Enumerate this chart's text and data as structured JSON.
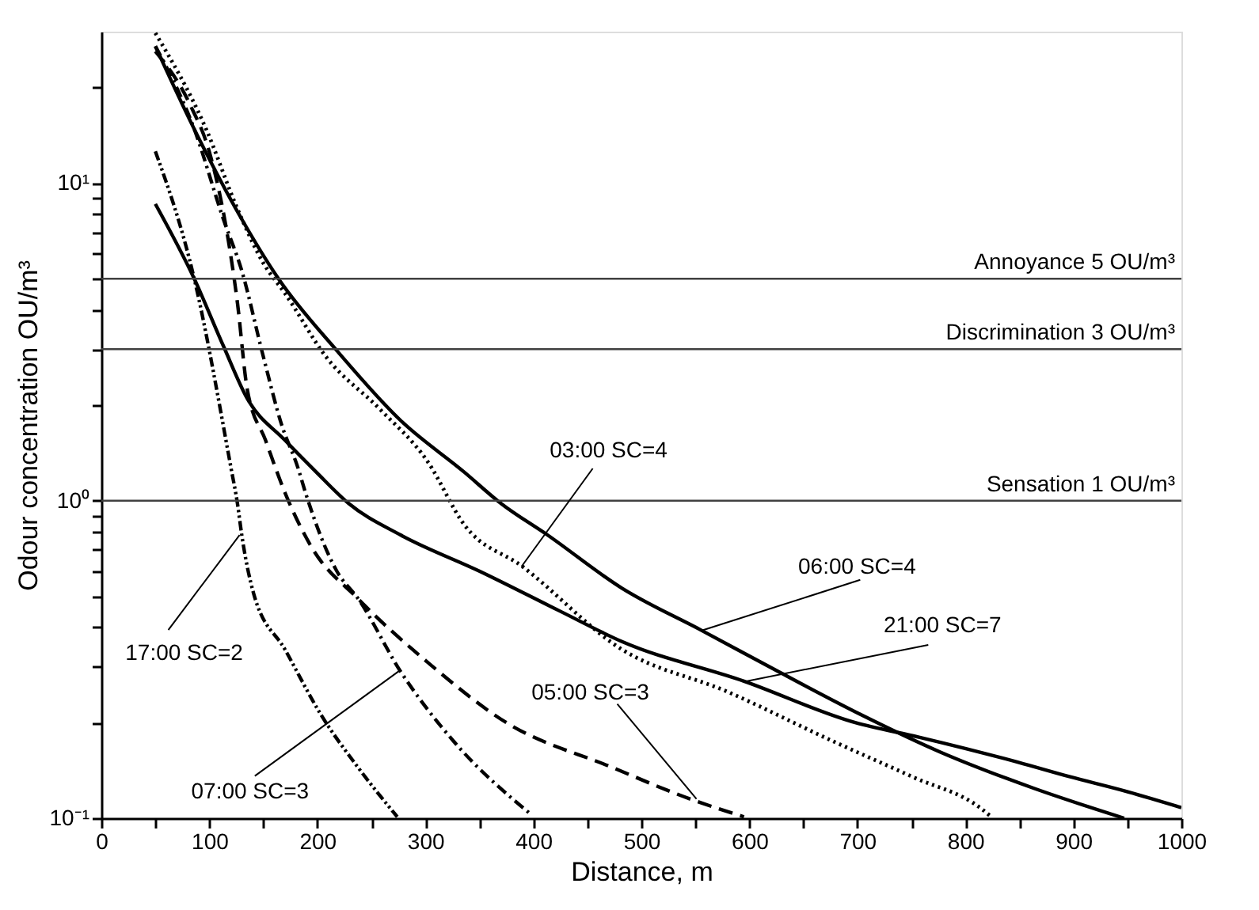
{
  "chart_data": {
    "type": "line",
    "xlabel": "Distance,  m",
    "ylabel": "Odour concentration   OU/m³",
    "xlim": [
      0,
      1000
    ],
    "ylim": [
      0.1,
      30
    ],
    "log": "y",
    "grid": false,
    "xticks": [
      0,
      {
        "value": 50,
        "label": null
      },
      100,
      {
        "value": 150,
        "label": null
      },
      200,
      {
        "value": 250,
        "label": null
      },
      300,
      {
        "value": 350,
        "label": null
      },
      400,
      {
        "value": 450,
        "label": null
      },
      500,
      {
        "value": 550,
        "label": null
      },
      600,
      {
        "value": 650,
        "label": null
      },
      700,
      {
        "value": 750,
        "label": null
      },
      800,
      {
        "value": 850,
        "label": null
      },
      900,
      {
        "value": 950,
        "label": null
      },
      1000
    ],
    "yticks": [
      {
        "value": 0.1,
        "label": "10⁻¹"
      },
      {
        "value": 0.2,
        "label": null
      },
      {
        "value": 0.3,
        "label": null
      },
      {
        "value": 0.4,
        "label": null
      },
      {
        "value": 0.5,
        "label": null
      },
      {
        "value": 0.6,
        "label": null
      },
      {
        "value": 0.7,
        "label": null
      },
      {
        "value": 0.8,
        "label": null
      },
      {
        "value": 0.9,
        "label": null
      },
      {
        "value": 1,
        "label": "10⁰"
      },
      {
        "value": 2,
        "label": null
      },
      {
        "value": 3,
        "label": null
      },
      {
        "value": 4,
        "label": null
      },
      {
        "value": 5,
        "label": null
      },
      {
        "value": 6,
        "label": null
      },
      {
        "value": 7,
        "label": null
      },
      {
        "value": 8,
        "label": null
      },
      {
        "value": 9,
        "label": null
      },
      {
        "value": 10,
        "label": "10¹"
      },
      {
        "value": 20,
        "label": null
      }
    ],
    "series": [
      {
        "color": "#000000",
        "line_style": "dashdotdot",
        "x": [
          50,
          86,
          120,
          126,
          130,
          141,
          170,
          204,
          238,
          274
        ],
        "values": [
          12.6,
          5.0,
          1.27,
          0.98,
          0.78,
          0.51,
          0.34,
          0.21,
          0.144,
          0.101
        ]
      },
      {
        "color": "#000000",
        "line_style": "dashdot",
        "x": [
          50,
          86,
          113,
          130,
          150,
          167,
          182,
          189,
          218,
          238,
          277,
          326,
          399
        ],
        "values": [
          27,
          14.8,
          7.7,
          5.3,
          2.84,
          1.73,
          1.27,
          1.06,
          0.6,
          0.49,
          0.29,
          0.175,
          0.102
        ]
      },
      {
        "color": "#000000",
        "line_style": "dashed",
        "x": [
          50,
          82,
          101,
          116,
          126,
          135,
          152,
          170,
          194,
          238,
          302,
          375,
          472,
          545,
          595
        ],
        "values": [
          26,
          17.7,
          12.2,
          7.1,
          4.2,
          2.25,
          1.55,
          1.06,
          0.72,
          0.49,
          0.31,
          0.2,
          0.145,
          0.115,
          0.101
        ]
      },
      {
        "color": "#000000",
        "line_style": "solid",
        "x": [
          50,
          86,
          113,
          135,
          170,
          199,
          229,
          277,
          350,
          424,
          482,
          595,
          698,
          757,
          849,
          897,
          947,
          1000
        ],
        "values": [
          8.6,
          5.0,
          3.07,
          2.1,
          1.55,
          1.23,
          0.98,
          0.78,
          0.6,
          0.45,
          0.36,
          0.27,
          0.2,
          0.18,
          0.15,
          0.135,
          0.122,
          0.108
        ]
      },
      {
        "color": "#000000",
        "line_style": "solid",
        "x": [
          50,
          86,
          130,
          164,
          218,
          277,
          336,
          370,
          413,
          482,
          556,
          629,
          702,
          776,
          864,
          947
        ],
        "values": [
          27,
          14.8,
          7.7,
          5.0,
          2.97,
          1.79,
          1.23,
          0.98,
          0.78,
          0.53,
          0.39,
          0.287,
          0.213,
          0.162,
          0.124,
          0.1
        ]
      },
      {
        "color": "#000000",
        "line_style": "dotted",
        "x": [
          50,
          97,
          126,
          150,
          170,
          208,
          258,
          302,
          336,
          390,
          482,
          580,
          677,
          751,
          815,
          824
        ],
        "values": [
          29.7,
          14.8,
          8.3,
          5.6,
          4.5,
          2.84,
          1.94,
          1.33,
          0.84,
          0.62,
          0.34,
          0.25,
          0.175,
          0.135,
          0.107,
          0.101
        ]
      }
    ],
    "ref_lines": [
      {
        "axis": "y",
        "value": 5,
        "label": "Annoyance 5 OU/m³",
        "color": "#404040"
      },
      {
        "axis": "y",
        "value": 3,
        "label": "Discrimination 3 OU/m³",
        "color": "#404040"
      },
      {
        "axis": "y",
        "value": 1,
        "label": "Sensation 1 OU/m³",
        "color": "#404040"
      }
    ],
    "annotations": [
      {
        "text": "03:00 SC=4",
        "x": 389,
        "y": 0.62
      },
      {
        "text": "06:00 SC=4",
        "x": 556,
        "y": 0.39
      },
      {
        "text": "21:00 SC=7",
        "x": 597,
        "y": 0.27
      },
      {
        "text": "05:00 SC=3",
        "x": 551,
        "y": 0.115
      },
      {
        "text": "17:00 SC=2",
        "x": 128,
        "y": 0.78
      },
      {
        "text": "07:00 SC=3",
        "x": 277,
        "y": 0.293
      }
    ]
  }
}
